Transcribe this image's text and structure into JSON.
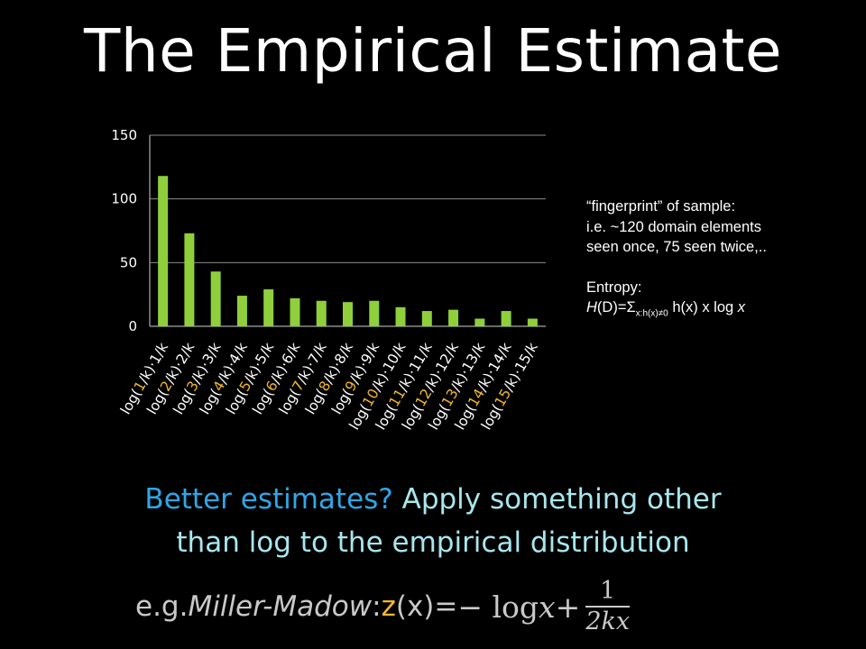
{
  "slide": {
    "title": "The Empirical Estimate"
  },
  "chart_data": {
    "type": "bar",
    "categories": [
      "log(1/k)·1/k",
      "log(2/k)·2/k",
      "log(3/k)·3/k",
      "log(4/k)·4/k",
      "log(5/k)·5/k",
      "log(6/k)·6/k",
      "log(7/k)·7/k",
      "log(8/k)·8/k",
      "log(9/k)·9/k",
      "log(10/k)·10/k",
      "log(11/k)·11/k",
      "log(12/k)·12/k",
      "log(13/k)·13/k",
      "log(14/k)·14/k",
      "log(15/k)·15/k"
    ],
    "values": [
      118,
      73,
      43,
      24,
      29,
      22,
      20,
      19,
      20,
      15,
      12,
      13,
      6,
      12,
      6
    ],
    "yticks": [
      0,
      50,
      100,
      150
    ],
    "ylim": [
      0,
      150
    ],
    "grid": true,
    "bar_color": "#8fcf3c",
    "highlight_color": "#f5b830"
  },
  "notes": {
    "line1": "“fingerprint” of sample:",
    "line2": "i.e. ~120 domain elements",
    "line3": "seen once, 75 seen twice,..",
    "entropy_label": "Entropy:",
    "formula_h": "H",
    "formula_d": "(D)=Σ",
    "formula_sub": "x:h(x)≠0",
    "formula_rest": " h(x) x log ",
    "formula_x": "x"
  },
  "bottom": {
    "q1": "Better estimates?",
    "q2": " Apply something other",
    "line2": "than log to the empirical distribution",
    "eg": "e.g. ",
    "mm": "Miller-Madow",
    "colon": ": ",
    "z": "z",
    "zx": "(x)=",
    "minus": "− log ",
    "x": "x",
    "plus": " + ",
    "num": "1",
    "den": "2kx"
  }
}
